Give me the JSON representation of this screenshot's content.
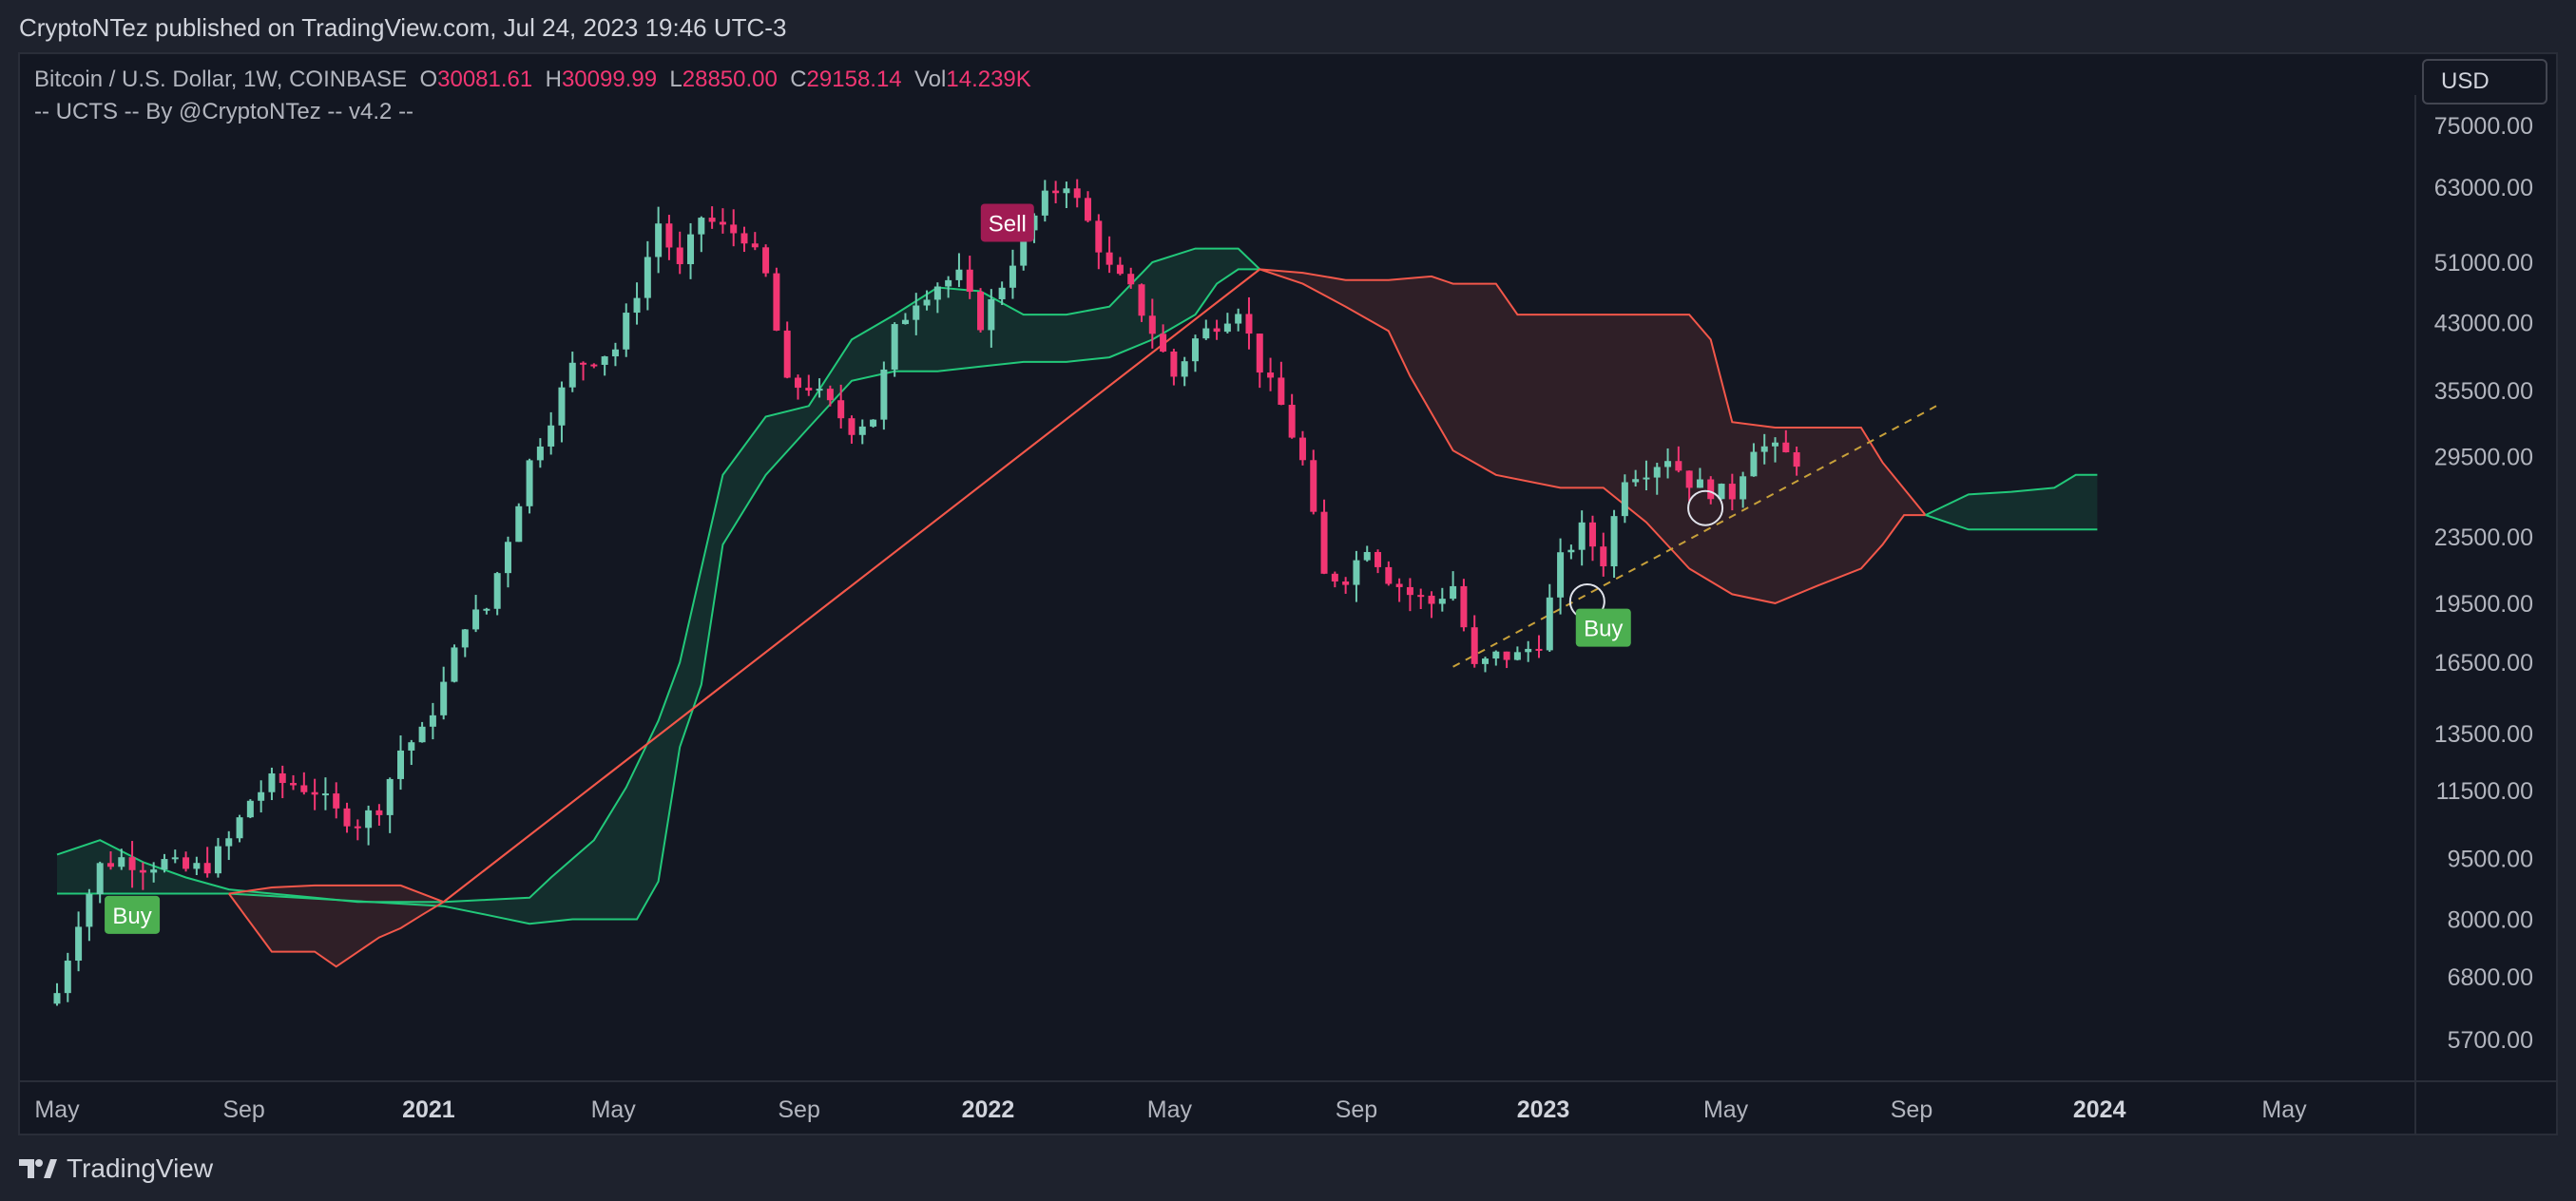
{
  "header": {
    "published": "CryptoNTez published on TradingView.com, Jul 24, 2023 19:46 UTC-3"
  },
  "legend": {
    "symbol": "Bitcoin / U.S. Dollar, 1W, COINBASE",
    "open_label": "O",
    "open": "30081.61",
    "high_label": "H",
    "high": "30099.99",
    "low_label": "L",
    "low": "28850.00",
    "close_label": "C",
    "close": "29158.14",
    "vol_label": "Vol",
    "vol": "14.239K",
    "indicator": "-- UCTS -- By @CryptoNTez -- v4.2 --"
  },
  "currency_button": "USD",
  "footer": {
    "brand": "TradingView"
  },
  "colors": {
    "up": "#6fcbb2",
    "down": "#f23673",
    "cloud_up": "#22c87a",
    "cloud_down": "#f2574a",
    "buy": "#4caf50",
    "sell": "#a01b53",
    "trend": "#c8a13a"
  },
  "chart_data": {
    "type": "candlestick",
    "symbol": "BTCUSD",
    "timeframe": "1W",
    "y_scale": "log",
    "y_ticks": [
      "75000.00",
      "63000.00",
      "51000.00",
      "43000.00",
      "35500.00",
      "29500.00",
      "23500.00",
      "19500.00",
      "16500.00",
      "13500.00",
      "11500.00",
      "9500.00",
      "8000.00",
      "6800.00",
      "5700.00"
    ],
    "x_ticks": [
      {
        "label": "May",
        "t": 0.0,
        "bold": false
      },
      {
        "label": "Sep",
        "t": 17.4,
        "bold": false
      },
      {
        "label": "2021",
        "t": 34.6,
        "bold": true
      },
      {
        "label": "May",
        "t": 51.8,
        "bold": false
      },
      {
        "label": "Sep",
        "t": 69.1,
        "bold": false
      },
      {
        "label": "2022",
        "t": 86.7,
        "bold": true
      },
      {
        "label": "May",
        "t": 103.6,
        "bold": false
      },
      {
        "label": "Sep",
        "t": 121.0,
        "bold": false
      },
      {
        "label": "2023",
        "t": 138.4,
        "bold": true
      },
      {
        "label": "May",
        "t": 155.4,
        "bold": false
      },
      {
        "label": "Sep",
        "t": 172.7,
        "bold": false
      },
      {
        "label": "2024",
        "t": 190.2,
        "bold": true
      },
      {
        "label": "May",
        "t": 207.4,
        "bold": false
      }
    ],
    "close_series": [
      [
        0,
        6500
      ],
      [
        2,
        8000
      ],
      [
        4,
        9300
      ],
      [
        6,
        9500
      ],
      [
        8,
        9300
      ],
      [
        10,
        9400
      ],
      [
        12,
        9200
      ],
      [
        14,
        9300
      ],
      [
        16,
        10000
      ],
      [
        18,
        11200
      ],
      [
        20,
        11800
      ],
      [
        22,
        11700
      ],
      [
        24,
        11500
      ],
      [
        26,
        10800
      ],
      [
        28,
        10500
      ],
      [
        30,
        11000
      ],
      [
        32,
        12900
      ],
      [
        34,
        13500
      ],
      [
        36,
        15500
      ],
      [
        38,
        18500
      ],
      [
        40,
        19200
      ],
      [
        42,
        23500
      ],
      [
        44,
        29000
      ],
      [
        46,
        33000
      ],
      [
        48,
        38000
      ],
      [
        50,
        39000
      ],
      [
        52,
        40000
      ],
      [
        54,
        47000
      ],
      [
        56,
        57000
      ],
      [
        58,
        50000
      ],
      [
        60,
        58000
      ],
      [
        62,
        56000
      ],
      [
        64,
        55000
      ],
      [
        66,
        49000
      ],
      [
        68,
        36000
      ],
      [
        70,
        36000
      ],
      [
        72,
        34000
      ],
      [
        74,
        32000
      ],
      [
        76,
        33000
      ],
      [
        78,
        42000
      ],
      [
        80,
        46000
      ],
      [
        82,
        48000
      ],
      [
        84,
        49000
      ],
      [
        86,
        43000
      ],
      [
        88,
        48000
      ],
      [
        90,
        55000
      ],
      [
        92,
        61000
      ],
      [
        94,
        64000
      ],
      [
        96,
        57000
      ],
      [
        98,
        50000
      ],
      [
        100,
        47000
      ],
      [
        102,
        42000
      ],
      [
        104,
        37000
      ],
      [
        106,
        41000
      ],
      [
        108,
        43000
      ],
      [
        110,
        45000
      ],
      [
        112,
        38000
      ],
      [
        114,
        34000
      ],
      [
        116,
        29000
      ],
      [
        118,
        21000
      ],
      [
        120,
        21000
      ],
      [
        122,
        23000
      ],
      [
        124,
        21000
      ],
      [
        126,
        20000
      ],
      [
        128,
        19500
      ],
      [
        130,
        20500
      ],
      [
        132,
        16200
      ],
      [
        134,
        16800
      ],
      [
        136,
        16800
      ],
      [
        138,
        17500
      ],
      [
        140,
        22000
      ],
      [
        142,
        24000
      ],
      [
        144,
        22000
      ],
      [
        146,
        28000
      ],
      [
        148,
        28500
      ],
      [
        150,
        29500
      ],
      [
        152,
        27500
      ],
      [
        154,
        26800
      ],
      [
        156,
        26500
      ],
      [
        158,
        30500
      ],
      [
        160,
        30000
      ],
      [
        162,
        29200
      ]
    ],
    "cloud_green_upper": [
      [
        0,
        9600
      ],
      [
        4,
        10000
      ],
      [
        8,
        9400
      ],
      [
        12,
        9000
      ],
      [
        16,
        8700
      ],
      [
        20,
        8600
      ],
      [
        24,
        8500
      ],
      [
        28,
        8400
      ],
      [
        32,
        8400
      ],
      [
        36,
        8400
      ],
      [
        40,
        8450
      ],
      [
        44,
        8500
      ],
      [
        46,
        9000
      ],
      [
        50,
        10000
      ],
      [
        53,
        11600
      ],
      [
        56,
        14000
      ],
      [
        58,
        16500
      ],
      [
        60,
        21500
      ],
      [
        62,
        28000
      ],
      [
        66,
        33000
      ],
      [
        70,
        34000
      ],
      [
        74,
        41000
      ],
      [
        78,
        44000
      ],
      [
        82,
        47500
      ],
      [
        86,
        47000
      ],
      [
        90,
        44000
      ],
      [
        94,
        44000
      ],
      [
        98,
        45000
      ],
      [
        102,
        51000
      ],
      [
        106,
        53000
      ],
      [
        110,
        53000
      ],
      [
        112,
        50000
      ]
    ],
    "cloud_green_lower": [
      [
        0,
        8600
      ],
      [
        16,
        8600
      ],
      [
        36,
        8300
      ],
      [
        40,
        8100
      ],
      [
        44,
        7900
      ],
      [
        48,
        8000
      ],
      [
        54,
        8000
      ],
      [
        56,
        8900
      ],
      [
        58,
        13000
      ],
      [
        60,
        15500
      ],
      [
        62,
        23000
      ],
      [
        66,
        28000
      ],
      [
        70,
        32000
      ],
      [
        74,
        36500
      ],
      [
        78,
        37500
      ],
      [
        82,
        37500
      ],
      [
        86,
        38000
      ],
      [
        90,
        38500
      ],
      [
        94,
        38500
      ],
      [
        98,
        39000
      ],
      [
        102,
        41000
      ],
      [
        106,
        44000
      ],
      [
        108,
        48000
      ],
      [
        110,
        50000
      ],
      [
        112,
        50000
      ]
    ],
    "cloud_red_upper": [
      [
        16,
        8600
      ],
      [
        20,
        8750
      ],
      [
        24,
        8800
      ],
      [
        28,
        8800
      ],
      [
        32,
        8800
      ],
      [
        36,
        8400
      ],
      [
        112,
        50000
      ],
      [
        116,
        49500
      ],
      [
        120,
        48500
      ],
      [
        124,
        48500
      ],
      [
        128,
        49000
      ],
      [
        130,
        48000
      ],
      [
        134,
        48000
      ],
      [
        136,
        44000
      ],
      [
        140,
        44000
      ],
      [
        144,
        44000
      ],
      [
        148,
        44000
      ],
      [
        152,
        44000
      ],
      [
        154,
        41000
      ],
      [
        156,
        32500
      ],
      [
        160,
        32000
      ],
      [
        164,
        32000
      ],
      [
        168,
        32000
      ],
      [
        170,
        29000
      ],
      [
        174,
        25000
      ]
    ],
    "cloud_red_lower": [
      [
        16,
        8600
      ],
      [
        20,
        7300
      ],
      [
        24,
        7300
      ],
      [
        26,
        7000
      ],
      [
        30,
        7600
      ],
      [
        32,
        7800
      ],
      [
        34,
        8100
      ],
      [
        36,
        8400
      ],
      [
        112,
        50000
      ],
      [
        116,
        48000
      ],
      [
        120,
        45000
      ],
      [
        124,
        42000
      ],
      [
        126,
        37000
      ],
      [
        130,
        30000
      ],
      [
        134,
        28000
      ],
      [
        140,
        27000
      ],
      [
        144,
        27000
      ],
      [
        148,
        24500
      ],
      [
        152,
        21500
      ],
      [
        156,
        20000
      ],
      [
        160,
        19500
      ],
      [
        164,
        20500
      ],
      [
        168,
        21500
      ],
      [
        170,
        23000
      ],
      [
        172,
        25000
      ],
      [
        174,
        25000
      ]
    ],
    "future_green_upper": [
      [
        174,
        25000
      ],
      [
        178,
        26500
      ],
      [
        182,
        26700
      ],
      [
        186,
        27000
      ],
      [
        188,
        28000
      ],
      [
        190,
        28000
      ]
    ],
    "future_green_lower": [
      [
        174,
        25000
      ],
      [
        178,
        24000
      ],
      [
        182,
        24000
      ],
      [
        186,
        24000
      ],
      [
        188,
        24000
      ],
      [
        190,
        24000
      ]
    ],
    "trendline": [
      [
        130,
        16300
      ],
      [
        175,
        34000
      ]
    ],
    "signals": [
      {
        "label": "Buy",
        "t": 7,
        "price": 8100,
        "kind": "buy"
      },
      {
        "label": "Sell",
        "t": 88.5,
        "price": 57000,
        "kind": "sell"
      },
      {
        "label": "Buy",
        "t": 144,
        "price": 18200,
        "kind": "buy"
      }
    ],
    "circle_markers": [
      {
        "t": 142.5,
        "price": 19600
      },
      {
        "t": 153.5,
        "price": 25500
      }
    ]
  }
}
